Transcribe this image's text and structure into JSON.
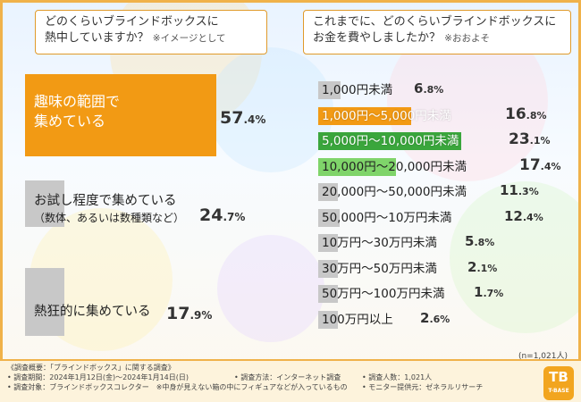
{
  "colors": {
    "orange": "#f29a14",
    "gray": "#c8c8c8",
    "dark_green": "#3aa63c",
    "light_green": "#7fd46a",
    "orange_text": "#ffffff"
  },
  "left_question": {
    "line1": "どのくらいブラインドボックスに",
    "line2": "熱中していますか？",
    "note": "※イメージとして"
  },
  "right_question": {
    "line1": "これまでに、どのくらいブラインドボックスに",
    "line2": "お金を費やしましたか？",
    "note": "※おおよそ"
  },
  "chart_data": [
    {
      "type": "bar",
      "title": "どのくらいブラインドボックスに熱中していますか？ ※イメージとして",
      "categories": [
        "趣味の範囲で集めている",
        "お試し程度で集めている（数体、あるいは数種類など）",
        "熱狂的に集めている"
      ],
      "values": [
        57.4,
        24.7,
        17.9
      ],
      "value_labels": [
        {
          "big": "57",
          "small": ".4%"
        },
        {
          "big": "24",
          "small": ".7%"
        },
        {
          "big": "17",
          "small": ".9%"
        }
      ],
      "label_lines": [
        [
          "趣味の範囲で",
          "集めている"
        ],
        [
          "お試し程度で集めている",
          "（数体、あるいは数種類など）"
        ],
        [
          "熱狂的に集めている"
        ]
      ],
      "ylim": [
        0,
        100
      ]
    },
    {
      "type": "bar",
      "title": "これまでに、どのくらいブラインドボックスにお金を費やしましたか？ ※おおよそ",
      "categories": [
        "1,000円未満",
        "1,000円～5,000円未満",
        "5,000円～10,000円未満",
        "10,000円～20,000円未満",
        "20,000円～50,000円未満",
        "50,000円～10万円未満",
        "10万円～30万円未満",
        "30万円～50万円未満",
        "50万円～100万円未満",
        "100万円以上"
      ],
      "values": [
        6.8,
        16.8,
        23.1,
        17.4,
        11.3,
        12.4,
        5.8,
        2.1,
        1.7,
        2.6
      ],
      "value_labels": [
        {
          "big": "6",
          "small": ".8%"
        },
        {
          "big": "16",
          "small": ".8%"
        },
        {
          "big": "23",
          "small": ".1%"
        },
        {
          "big": "17",
          "small": ".4%"
        },
        {
          "big": "11",
          "small": ".3%"
        },
        {
          "big": "12",
          "small": ".4%"
        },
        {
          "big": "5",
          "small": ".8%"
        },
        {
          "big": "2",
          "small": ".1%"
        },
        {
          "big": "1",
          "small": ".7%"
        },
        {
          "big": "2",
          "small": ".6%"
        }
      ],
      "ylim": [
        0,
        25
      ],
      "sample": "(n=1,021人)"
    }
  ],
  "footer": {
    "title": "《調査概要：「ブラインドボックス」に関する調査》",
    "period": "• 調査期間：2024年1月12日(金)～2024年1月14日(日)",
    "method": "• 調査方法：インターネット調査",
    "count": "• 調査人数：1,021人",
    "target": "• 調査対象：ブラインドボックスコレクター　※中身が見えない箱の中にフィギュアなどが入っているもの",
    "provider": "• モニター提供元：ゼネラルリサーチ"
  },
  "logo": {
    "mark": "TB",
    "text": "T-BASE"
  }
}
